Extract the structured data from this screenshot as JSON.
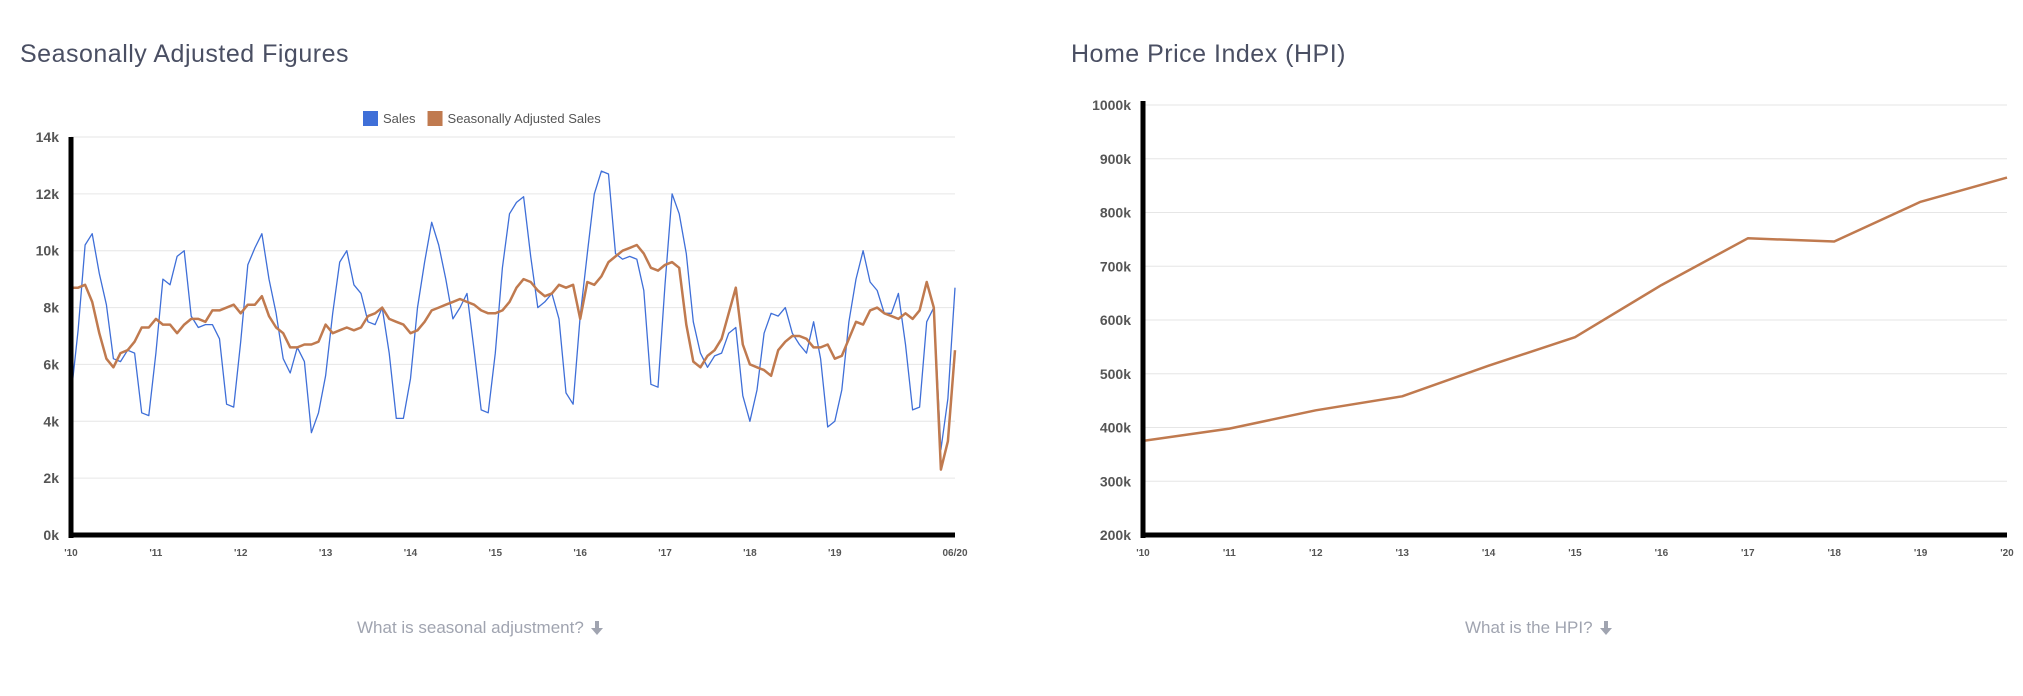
{
  "left_panel": {
    "title": "Seasonally Adjusted Figures",
    "help_link": "What is seasonal adjustment?",
    "help_icon": "arrow-down-icon"
  },
  "right_panel": {
    "title": "Home Price Index (HPI)",
    "help_link": "What is the HPI?",
    "help_icon": "arrow-down-icon"
  },
  "chart_data": [
    {
      "type": "line",
      "title": "",
      "xlabel": "",
      "ylabel": "",
      "legend_position": "top-center",
      "grid": true,
      "ylim": [
        0,
        14000
      ],
      "y_ticks": [
        "0k",
        "2k",
        "4k",
        "6k",
        "8k",
        "10k",
        "12k",
        "14k"
      ],
      "x_ticks": [
        "'10",
        "'11",
        "'12",
        "'13",
        "'14",
        "'15",
        "'16",
        "'17",
        "'18",
        "'19",
        "06/20"
      ],
      "colors": {
        "Sales": "#3f6fd8",
        "Seasonally Adjusted Sales": "#c07a4f"
      },
      "x_months": [
        0,
        1,
        2,
        3,
        4,
        5,
        6,
        7,
        8,
        9,
        10,
        11,
        12,
        13,
        14,
        15,
        16,
        17,
        18,
        19,
        20,
        21,
        22,
        23,
        24,
        25,
        26,
        27,
        28,
        29,
        30,
        31,
        32,
        33,
        34,
        35,
        36,
        37,
        38,
        39,
        40,
        41,
        42,
        43,
        44,
        45,
        46,
        47,
        48,
        49,
        50,
        51,
        52,
        53,
        54,
        55,
        56,
        57,
        58,
        59,
        60,
        61,
        62,
        63,
        64,
        65,
        66,
        67,
        68,
        69,
        70,
        71,
        72,
        73,
        74,
        75,
        76,
        77,
        78,
        79,
        80,
        81,
        82,
        83,
        84,
        85,
        86,
        87,
        88,
        89,
        90,
        91,
        92,
        93,
        94,
        95,
        96,
        97,
        98,
        99,
        100,
        101,
        102,
        103,
        104,
        105,
        106,
        107,
        108,
        109,
        110,
        111,
        112,
        113,
        114,
        115,
        116,
        117,
        118,
        119,
        120,
        121,
        122,
        123,
        124,
        125
      ],
      "series": [
        {
          "name": "Sales",
          "values": [
            4900,
            7200,
            10200,
            10600,
            9200,
            8100,
            6200,
            6100,
            6500,
            6400,
            4300,
            4200,
            6400,
            9000,
            8800,
            9800,
            10000,
            7700,
            7300,
            7400,
            7400,
            6900,
            4600,
            4500,
            6800,
            9500,
            10100,
            10600,
            9000,
            7800,
            6200,
            5700,
            6600,
            6100,
            3600,
            4300,
            5600,
            7800,
            9600,
            10000,
            8800,
            8500,
            7500,
            7400,
            8000,
            6400,
            4100,
            4100,
            5500,
            8000,
            9600,
            11000,
            10200,
            9000,
            7600,
            8000,
            8500,
            6500,
            4400,
            4300,
            6400,
            9400,
            11300,
            11700,
            11900,
            9800,
            8000,
            8200,
            8500,
            7600,
            5000,
            4600,
            7700,
            9900,
            12000,
            12800,
            12700,
            9900,
            9700,
            9800,
            9700,
            8600,
            5300,
            5200,
            8800,
            12000,
            11300,
            9900,
            7500,
            6400,
            5900,
            6300,
            6400,
            7100,
            7300,
            4900,
            4000,
            5100,
            7100,
            7800,
            7700,
            8000,
            7100,
            6700,
            6400,
            7500,
            6200,
            3800,
            4000,
            5100,
            7500,
            9000,
            10000,
            8900,
            8600,
            7800,
            7800,
            8500,
            6700,
            4400,
            4500,
            7500,
            8000,
            3000,
            4800,
            8700
          ]
        },
        {
          "name": "Seasonally Adjusted Sales",
          "values": [
            8700,
            8700,
            8800,
            8200,
            7100,
            6200,
            5900,
            6400,
            6500,
            6800,
            7300,
            7300,
            7600,
            7400,
            7400,
            7100,
            7400,
            7600,
            7600,
            7500,
            7900,
            7900,
            8000,
            8100,
            7800,
            8100,
            8100,
            8400,
            7700,
            7300,
            7100,
            6600,
            6600,
            6700,
            6700,
            6800,
            7400,
            7100,
            7200,
            7300,
            7200,
            7300,
            7700,
            7800,
            8000,
            7600,
            7500,
            7400,
            7100,
            7200,
            7500,
            7900,
            8000,
            8100,
            8200,
            8300,
            8200,
            8100,
            7900,
            7800,
            7800,
            7900,
            8200,
            8700,
            9000,
            8900,
            8600,
            8400,
            8500,
            8800,
            8700,
            8800,
            7600,
            8900,
            8800,
            9100,
            9600,
            9800,
            10000,
            10100,
            10200,
            9900,
            9400,
            9300,
            9500,
            9600,
            9400,
            7400,
            6100,
            5900,
            6300,
            6500,
            6900,
            7800,
            8700,
            6700,
            6000,
            5900,
            5800,
            5600,
            6500,
            6800,
            7000,
            7000,
            6900,
            6600,
            6600,
            6700,
            6200,
            6300,
            6900,
            7500,
            7400,
            7900,
            8000,
            7800,
            7700,
            7600,
            7800,
            7600,
            7900,
            8900,
            8000,
            2300,
            3300,
            6500
          ]
        }
      ]
    },
    {
      "type": "line",
      "title": "",
      "xlabel": "",
      "ylabel": "",
      "grid": true,
      "ylim": [
        200000,
        1000000
      ],
      "y_ticks": [
        "200k",
        "300k",
        "400k",
        "500k",
        "600k",
        "700k",
        "800k",
        "900k",
        "1000k"
      ],
      "categories": [
        "'10",
        "'11",
        "'12",
        "'13",
        "'14",
        "'15",
        "'16",
        "'17",
        "'18",
        "'19",
        "'20"
      ],
      "colors": {
        "HPI": "#c07a4f"
      },
      "series": [
        {
          "name": "",
          "values": [
            375000,
            398000,
            432000,
            458000,
            515000,
            568000,
            665000,
            752000,
            746000,
            820000,
            865000
          ]
        }
      ]
    }
  ]
}
